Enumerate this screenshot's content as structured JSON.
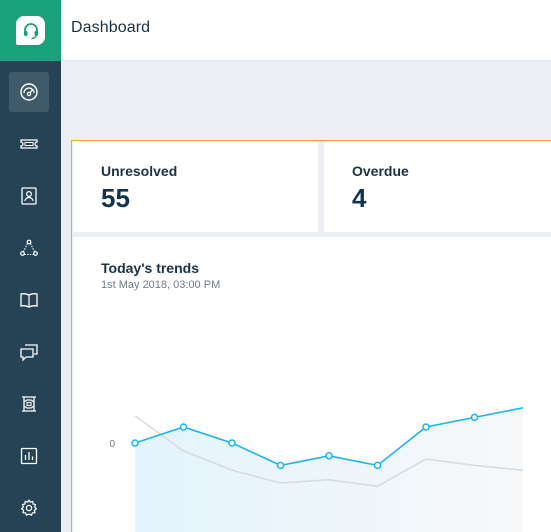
{
  "header": {
    "title": "Dashboard"
  },
  "sidebar": {
    "items": [
      {
        "name": "dashboard-icon",
        "active": true
      },
      {
        "name": "ticket-icon"
      },
      {
        "name": "contacts-icon"
      },
      {
        "name": "social-icon"
      },
      {
        "name": "solutions-icon"
      },
      {
        "name": "discussions-icon"
      },
      {
        "name": "arcade-icon"
      },
      {
        "name": "reports-icon"
      },
      {
        "name": "gear-icon"
      }
    ]
  },
  "cards": {
    "unresolved": {
      "label": "Unresolved",
      "value": "55"
    },
    "overdue": {
      "label": "Overdue",
      "value": "4"
    }
  },
  "trends": {
    "title": "Today's trends",
    "timestamp": "1st May 2018, 03:00 PM"
  },
  "chart_data": {
    "type": "line",
    "y_tick_labels": [
      "0"
    ],
    "series": [
      {
        "values": [
          0,
          1,
          0,
          -1.4,
          -0.8,
          -1.4,
          1,
          1.6,
          2.2
        ]
      },
      {
        "values": [
          1.7,
          -0.5,
          -1.7,
          -2.5,
          -2.3,
          -2.7,
          -1,
          -1.4,
          -1.7
        ]
      }
    ],
    "colors": {
      "primary": "#1cb4f0",
      "secondary": "#d6dadf"
    }
  }
}
